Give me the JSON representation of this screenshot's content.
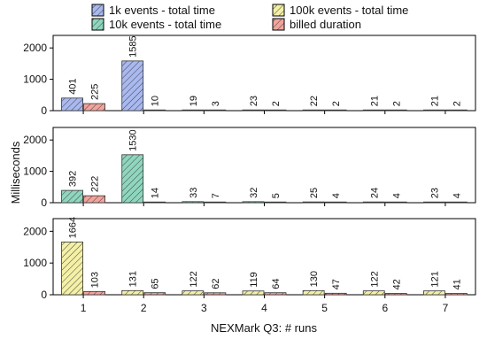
{
  "chart_data": {
    "type": "bar",
    "layout": "three stacked panels sharing x axis",
    "xlabel": "NEXMark Q3: # runs",
    "ylabel": "Milliseconds",
    "categories": [
      "1",
      "2",
      "3",
      "4",
      "5",
      "6",
      "7"
    ],
    "ylim": [
      0,
      2400
    ],
    "yticks": [
      "0",
      "1000",
      "2000"
    ],
    "grid": false,
    "legend": {
      "placement": "top",
      "entries": [
        {
          "label": "1k events - total time",
          "color": "#a9b9f0"
        },
        {
          "label": "10k events - total time",
          "color": "#8fd6bf"
        },
        {
          "label": "100k events - total time",
          "color": "#f4f0a6"
        },
        {
          "label": "billed duration",
          "color": "#f2a39c"
        }
      ]
    },
    "panels": [
      {
        "series": [
          {
            "name": "1k events - total time",
            "color": "#a9b9f0",
            "values": [
              401,
              1585,
              19,
              23,
              22,
              21,
              21
            ],
            "labels": [
              "401",
              "1585",
              "19",
              "23",
              "22",
              "21",
              "21"
            ]
          },
          {
            "name": "billed duration",
            "color": "#f2a39c",
            "values": [
              225,
              10,
              3,
              2,
              2,
              2,
              2
            ],
            "labels": [
              "225",
              "10",
              "3",
              "2",
              "2",
              "2",
              "2"
            ]
          }
        ]
      },
      {
        "series": [
          {
            "name": "10k events - total time",
            "color": "#8fd6bf",
            "values": [
              392,
              1530,
              33,
              32,
              25,
              24,
              23
            ],
            "labels": [
              "392",
              "1530",
              "33",
              "32",
              "25",
              "24",
              "23"
            ]
          },
          {
            "name": "billed duration",
            "color": "#f2a39c",
            "values": [
              222,
              14,
              7,
              5,
              4,
              4,
              4
            ],
            "labels": [
              "222",
              "14",
              "7",
              "5",
              "4",
              "4",
              "4"
            ]
          }
        ]
      },
      {
        "series": [
          {
            "name": "100k events - total time",
            "color": "#f4f0a6",
            "values": [
              1664,
              131,
              122,
              119,
              130,
              122,
              121
            ],
            "labels": [
              "1664",
              "131",
              "122",
              "119",
              "130",
              "122",
              "121"
            ]
          },
          {
            "name": "billed duration",
            "color": "#f2a39c",
            "values": [
              103,
              65,
              62,
              64,
              47,
              42,
              41
            ],
            "labels": [
              "103",
              "65",
              "62",
              "64",
              "47",
              "42",
              "41"
            ]
          }
        ]
      }
    ]
  }
}
